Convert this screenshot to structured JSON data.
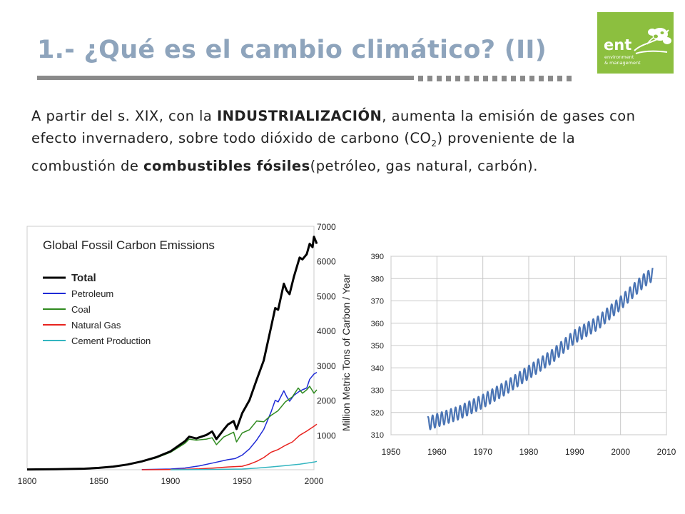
{
  "slide": {
    "title": "1.- ¿Qué es el cambio climático? (II)",
    "logo": {
      "word": "ent",
      "line1": "environment",
      "line2": "& management"
    },
    "paragraph": {
      "t1": "A partir del s. XIX, con la ",
      "b1": "INDUSTRIALIZACIÓN",
      "t2": ", aumenta la emisión de gases con efecto invernadero, sobre todo dióxido de carbono (CO",
      "sub": "2",
      "t3": ") proveniente de la combustión de ",
      "b2": "combustibles fósiles",
      "t4": "(petróleo, gas natural, carbón)."
    }
  },
  "colors": {
    "title": "#8ea4bc",
    "logo_bg": "#8cbf3f",
    "co2_line": "#4a74b4"
  },
  "chart_data": [
    {
      "type": "line",
      "title": "Global Fossil Carbon Emissions",
      "xlabel": "",
      "ylabel": "Million Metric Tons of Carbon / Year",
      "xlim": [
        1800,
        2000
      ],
      "ylim": [
        0,
        7000
      ],
      "xticks": [
        "1800",
        "1850",
        "1900",
        "1950",
        "2000"
      ],
      "yticks": [
        "1000",
        "2000",
        "3000",
        "4000",
        "5000",
        "6000",
        "7000"
      ],
      "legend_position": "top-left",
      "series": [
        {
          "name": "Total",
          "color": "#000000",
          "points": [
            [
              1800,
              8
            ],
            [
              1820,
              15
            ],
            [
              1840,
              30
            ],
            [
              1850,
              54
            ],
            [
              1860,
              90
            ],
            [
              1870,
              150
            ],
            [
              1880,
              240
            ],
            [
              1890,
              360
            ],
            [
              1900,
              530
            ],
            [
              1910,
              820
            ],
            [
              1913,
              950
            ],
            [
              1918,
              900
            ],
            [
              1920,
              930
            ],
            [
              1925,
              1000
            ],
            [
              1929,
              1100
            ],
            [
              1932,
              880
            ],
            [
              1937,
              1150
            ],
            [
              1940,
              1300
            ],
            [
              1944,
              1400
            ],
            [
              1946,
              1170
            ],
            [
              1950,
              1630
            ],
            [
              1955,
              2000
            ],
            [
              1960,
              2580
            ],
            [
              1965,
              3140
            ],
            [
              1970,
              4080
            ],
            [
              1973,
              4650
            ],
            [
              1975,
              4600
            ],
            [
              1979,
              5350
            ],
            [
              1981,
              5150
            ],
            [
              1983,
              5050
            ],
            [
              1986,
              5550
            ],
            [
              1990,
              6100
            ],
            [
              1992,
              6050
            ],
            [
              1995,
              6200
            ],
            [
              1997,
              6500
            ],
            [
              1999,
              6400
            ],
            [
              2000,
              6700
            ],
            [
              2002,
              6500
            ]
          ]
        },
        {
          "name": "Petroleum",
          "color": "#1f2bd6",
          "points": [
            [
              1880,
              4
            ],
            [
              1900,
              20
            ],
            [
              1910,
              50
            ],
            [
              1920,
              110
            ],
            [
              1930,
              200
            ],
            [
              1940,
              290
            ],
            [
              1945,
              320
            ],
            [
              1950,
              420
            ],
            [
              1955,
              600
            ],
            [
              1960,
              850
            ],
            [
              1965,
              1160
            ],
            [
              1970,
              1650
            ],
            [
              1973,
              2000
            ],
            [
              1975,
              1950
            ],
            [
              1979,
              2270
            ],
            [
              1981,
              2100
            ],
            [
              1983,
              1970
            ],
            [
              1986,
              2140
            ],
            [
              1990,
              2260
            ],
            [
              1992,
              2300
            ],
            [
              1995,
              2350
            ],
            [
              1997,
              2600
            ],
            [
              2000,
              2750
            ],
            [
              2002,
              2800
            ]
          ]
        },
        {
          "name": "Coal",
          "color": "#2f8a1f",
          "points": [
            [
              1800,
              8
            ],
            [
              1820,
              15
            ],
            [
              1840,
              30
            ],
            [
              1850,
              54
            ],
            [
              1860,
              90
            ],
            [
              1870,
              150
            ],
            [
              1880,
              240
            ],
            [
              1890,
              340
            ],
            [
              1900,
              500
            ],
            [
              1910,
              760
            ],
            [
              1913,
              880
            ],
            [
              1918,
              850
            ],
            [
              1920,
              860
            ],
            [
              1925,
              880
            ],
            [
              1929,
              920
            ],
            [
              1932,
              720
            ],
            [
              1937,
              940
            ],
            [
              1940,
              1000
            ],
            [
              1944,
              1080
            ],
            [
              1946,
              800
            ],
            [
              1950,
              1060
            ],
            [
              1955,
              1150
            ],
            [
              1960,
              1400
            ],
            [
              1965,
              1380
            ],
            [
              1970,
              1560
            ],
            [
              1975,
              1700
            ],
            [
              1980,
              1950
            ],
            [
              1985,
              2100
            ],
            [
              1989,
              2350
            ],
            [
              1992,
              2200
            ],
            [
              1995,
              2300
            ],
            [
              1997,
              2400
            ],
            [
              2000,
              2200
            ],
            [
              2002,
              2300
            ]
          ]
        },
        {
          "name": "Natural Gas",
          "color": "#e8231f",
          "points": [
            [
              1880,
              1
            ],
            [
              1900,
              5
            ],
            [
              1910,
              12
            ],
            [
              1920,
              25
            ],
            [
              1930,
              50
            ],
            [
              1940,
              80
            ],
            [
              1950,
              100
            ],
            [
              1955,
              160
            ],
            [
              1960,
              240
            ],
            [
              1965,
              350
            ],
            [
              1970,
              500
            ],
            [
              1975,
              580
            ],
            [
              1980,
              700
            ],
            [
              1985,
              800
            ],
            [
              1990,
              990
            ],
            [
              1995,
              1110
            ],
            [
              2000,
              1250
            ],
            [
              2002,
              1310
            ]
          ]
        },
        {
          "name": "Cement Production",
          "color": "#33b5c0",
          "points": [
            [
              1900,
              1
            ],
            [
              1920,
              5
            ],
            [
              1930,
              10
            ],
            [
              1940,
              15
            ],
            [
              1950,
              20
            ],
            [
              1960,
              45
            ],
            [
              1970,
              80
            ],
            [
              1980,
              120
            ],
            [
              1990,
              160
            ],
            [
              2000,
              220
            ],
            [
              2002,
              240
            ]
          ]
        }
      ]
    },
    {
      "type": "line",
      "title": "",
      "xlabel": "",
      "ylabel": "",
      "xlim": [
        1950,
        2010
      ],
      "ylim": [
        310,
        390
      ],
      "xticks": [
        "1950",
        "1960",
        "1970",
        "1980",
        "1990",
        "2000",
        "2010"
      ],
      "yticks": [
        "310",
        "320",
        "330",
        "340",
        "350",
        "360",
        "370",
        "380",
        "390"
      ],
      "grid": true,
      "seasonal_amplitude": 3,
      "series": [
        {
          "name": "",
          "color": "#4a74b4",
          "trend": [
            [
              1958,
              315
            ],
            [
              1965,
              320
            ],
            [
              1970,
              325
            ],
            [
              1975,
              331
            ],
            [
              1980,
              338
            ],
            [
              1985,
              345
            ],
            [
              1990,
              354
            ],
            [
              1995,
              360
            ],
            [
              2000,
              369
            ],
            [
              2005,
              379
            ],
            [
              2007,
              382
            ]
          ]
        }
      ]
    }
  ]
}
